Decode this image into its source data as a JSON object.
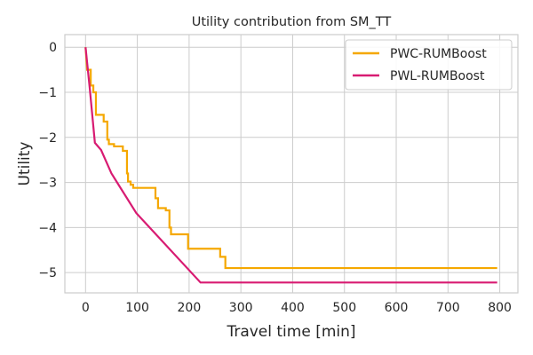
{
  "chart_data": {
    "type": "line",
    "title": "Utility contribution from SM_TT",
    "xlabel": "Travel time [min]",
    "ylabel": "Utility",
    "xlim": [
      -40,
      835
    ],
    "ylim": [
      -5.45,
      0.28
    ],
    "x_ticks": [
      0,
      100,
      200,
      300,
      400,
      500,
      600,
      700,
      800
    ],
    "y_ticks": [
      0,
      -1,
      -2,
      -3,
      -4,
      -5
    ],
    "grid": true,
    "legend_position": "top-right",
    "series": [
      {
        "name": "PWC-RUMBoost",
        "color": "#F5A800",
        "step": true,
        "points": [
          [
            0,
            0
          ],
          [
            3,
            -0.5
          ],
          [
            10,
            -0.5
          ],
          [
            10,
            -0.85
          ],
          [
            15,
            -0.85
          ],
          [
            15,
            -1.0
          ],
          [
            20,
            -1.0
          ],
          [
            20,
            -1.5
          ],
          [
            35,
            -1.5
          ],
          [
            35,
            -1.65
          ],
          [
            42,
            -1.65
          ],
          [
            42,
            -2.05
          ],
          [
            45,
            -2.05
          ],
          [
            45,
            -2.15
          ],
          [
            55,
            -2.15
          ],
          [
            55,
            -2.2
          ],
          [
            72,
            -2.2
          ],
          [
            72,
            -2.3
          ],
          [
            80,
            -2.3
          ],
          [
            80,
            -2.8
          ],
          [
            82,
            -2.8
          ],
          [
            82,
            -2.98
          ],
          [
            87,
            -2.98
          ],
          [
            87,
            -3.05
          ],
          [
            92,
            -3.05
          ],
          [
            92,
            -3.12
          ],
          [
            135,
            -3.12
          ],
          [
            135,
            -3.35
          ],
          [
            140,
            -3.35
          ],
          [
            140,
            -3.57
          ],
          [
            155,
            -3.57
          ],
          [
            155,
            -3.62
          ],
          [
            162,
            -3.62
          ],
          [
            162,
            -4.0
          ],
          [
            165,
            -4.0
          ],
          [
            165,
            -4.15
          ],
          [
            198,
            -4.15
          ],
          [
            198,
            -4.47
          ],
          [
            260,
            -4.47
          ],
          [
            260,
            -4.65
          ],
          [
            270,
            -4.65
          ],
          [
            270,
            -4.9
          ],
          [
            795,
            -4.9
          ]
        ]
      },
      {
        "name": "PWL-RUMBoost",
        "color": "#D81B72",
        "step": false,
        "points": [
          [
            0,
            0
          ],
          [
            8,
            -0.9
          ],
          [
            18,
            -2.12
          ],
          [
            30,
            -2.28
          ],
          [
            50,
            -2.8
          ],
          [
            98,
            -3.68
          ],
          [
            222,
            -5.22
          ],
          [
            795,
            -5.22
          ]
        ]
      }
    ]
  }
}
